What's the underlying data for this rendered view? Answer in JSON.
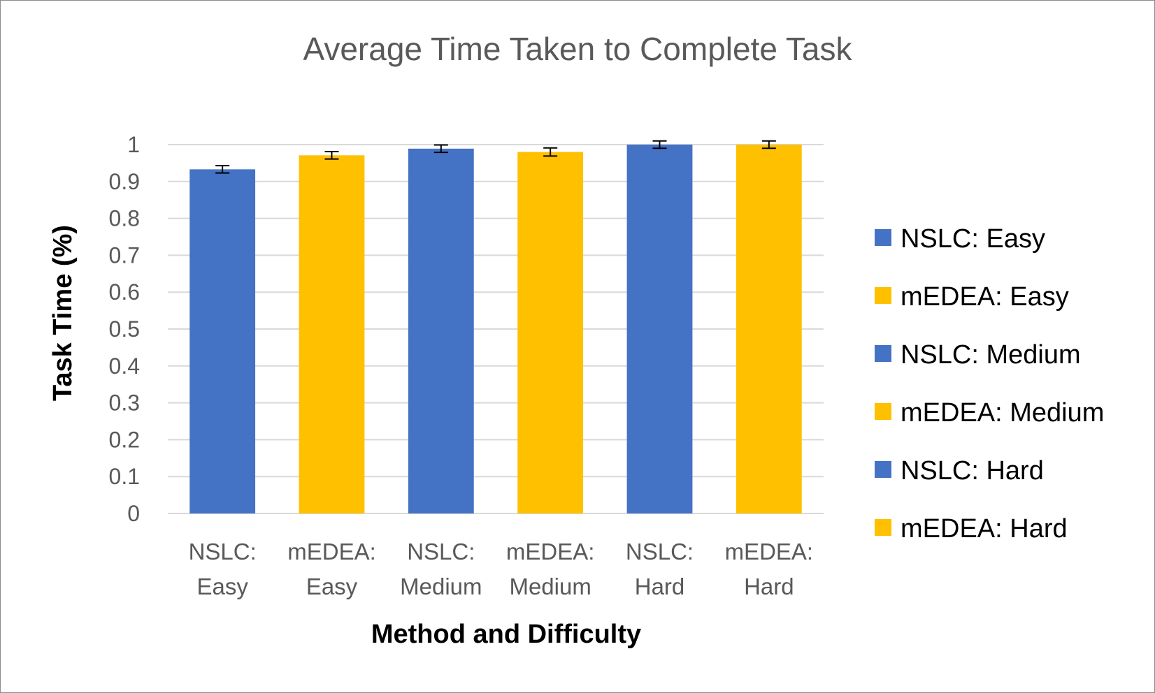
{
  "chart_data": {
    "type": "bar",
    "title": "Average Time Taken to Complete Task",
    "xlabel": "Method and Difficulty",
    "ylabel": "Task Time (%)",
    "ylim": [
      0,
      1
    ],
    "y_ticks": [
      "0",
      "0.1",
      "0.2",
      "0.3",
      "0.4",
      "0.5",
      "0.6",
      "0.7",
      "0.8",
      "0.9",
      "1"
    ],
    "categories": [
      [
        "NSLC:",
        "Easy"
      ],
      [
        "mEDEA:",
        "Easy"
      ],
      [
        "NSLC:",
        "Medium"
      ],
      [
        "mEDEA:",
        "Medium"
      ],
      [
        "NSLC:",
        "Hard"
      ],
      [
        "mEDEA:",
        "Hard"
      ]
    ],
    "values": [
      0.933,
      0.971,
      0.989,
      0.98,
      1.0,
      1.0
    ],
    "errors": [
      0.01,
      0.01,
      0.01,
      0.011,
      0.01,
      0.01
    ],
    "colors": [
      "#4472C4",
      "#FFC000",
      "#4472C4",
      "#FFC000",
      "#4472C4",
      "#FFC000"
    ],
    "legend": [
      {
        "label": "NSLC: Easy",
        "color": "#4472C4"
      },
      {
        "label": "mEDEA: Easy",
        "color": "#FFC000"
      },
      {
        "label": "NSLC: Medium",
        "color": "#4472C4"
      },
      {
        "label": "mEDEA: Medium",
        "color": "#FFC000"
      },
      {
        "label": "NSLC: Hard",
        "color": "#4472C4"
      },
      {
        "label": "mEDEA: Hard",
        "color": "#FFC000"
      }
    ],
    "legend_position": "right",
    "grid": true,
    "gridline_color": "#D9D9D9"
  }
}
